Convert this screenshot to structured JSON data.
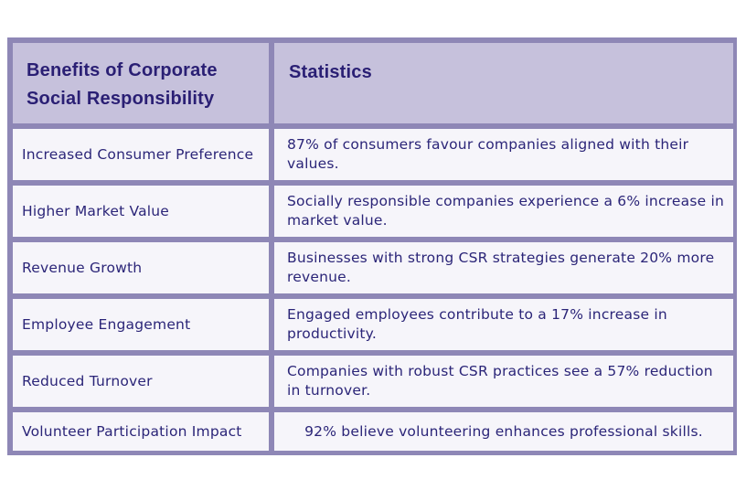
{
  "table": {
    "headers": [
      "Benefits of Corporate Social Responsibility",
      "Statistics"
    ],
    "rows": [
      {
        "benefit": "Increased Consumer Preference",
        "statistic": "87% of consumers favour companies aligned with their values."
      },
      {
        "benefit": "Higher Market Value",
        "statistic": "Socially responsible companies experience a 6% increase in market value."
      },
      {
        "benefit": "Revenue Growth",
        "statistic": "Businesses with strong CSR strategies generate 20% more revenue."
      },
      {
        "benefit": "Employee Engagement",
        "statistic": "Engaged employees contribute to a 17% increase in productivity."
      },
      {
        "benefit": "Reduced Turnover",
        "statistic": "Companies with robust CSR practices see a 57% reduction in turnover."
      },
      {
        "benefit": "Volunteer Participation Impact",
        "statistic": "92% believe volunteering enhances professional skills."
      }
    ]
  },
  "colors": {
    "border": "#8e87b6",
    "header_bg": "#c6c1dc",
    "cell_bg": "#f6f5fa",
    "text": "#2b2578"
  }
}
